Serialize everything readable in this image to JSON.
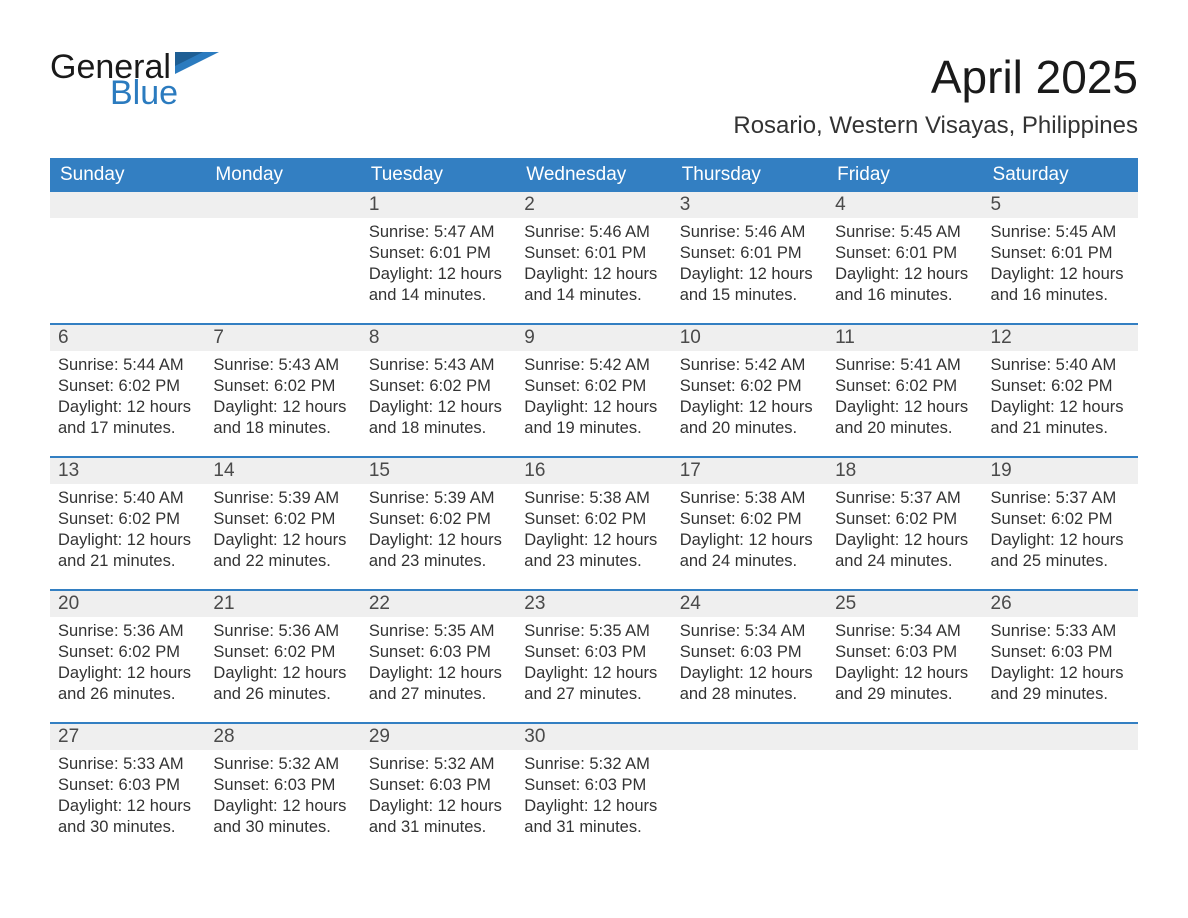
{
  "logo": {
    "word1": "General",
    "word2": "Blue",
    "flag_color": "#2b7bbf",
    "text_dark": "#1a1a1a"
  },
  "title": "April 2025",
  "location": "Rosario, Western Visayas, Philippines",
  "colors": {
    "header_bg": "#337fc2",
    "header_text": "#ffffff",
    "daynum_bg": "#efefef",
    "daynum_text": "#4a4a4a",
    "body_text": "#333333",
    "page_bg": "#ffffff",
    "week_border": "#337fc2"
  },
  "fonts": {
    "title_size_pt": 34,
    "location_size_pt": 18,
    "header_size_pt": 14,
    "daynum_size_pt": 14,
    "body_size_pt": 12
  },
  "day_headers": [
    "Sunday",
    "Monday",
    "Tuesday",
    "Wednesday",
    "Thursday",
    "Friday",
    "Saturday"
  ],
  "weeks": [
    [
      {
        "n": "",
        "sr": "",
        "ss": "",
        "dl": "",
        "dlm": ""
      },
      {
        "n": "",
        "sr": "",
        "ss": "",
        "dl": "",
        "dlm": ""
      },
      {
        "n": "1",
        "sr": "Sunrise: 5:47 AM",
        "ss": "Sunset: 6:01 PM",
        "dl": "Daylight: 12 hours",
        "dlm": "and 14 minutes."
      },
      {
        "n": "2",
        "sr": "Sunrise: 5:46 AM",
        "ss": "Sunset: 6:01 PM",
        "dl": "Daylight: 12 hours",
        "dlm": "and 14 minutes."
      },
      {
        "n": "3",
        "sr": "Sunrise: 5:46 AM",
        "ss": "Sunset: 6:01 PM",
        "dl": "Daylight: 12 hours",
        "dlm": "and 15 minutes."
      },
      {
        "n": "4",
        "sr": "Sunrise: 5:45 AM",
        "ss": "Sunset: 6:01 PM",
        "dl": "Daylight: 12 hours",
        "dlm": "and 16 minutes."
      },
      {
        "n": "5",
        "sr": "Sunrise: 5:45 AM",
        "ss": "Sunset: 6:01 PM",
        "dl": "Daylight: 12 hours",
        "dlm": "and 16 minutes."
      }
    ],
    [
      {
        "n": "6",
        "sr": "Sunrise: 5:44 AM",
        "ss": "Sunset: 6:02 PM",
        "dl": "Daylight: 12 hours",
        "dlm": "and 17 minutes."
      },
      {
        "n": "7",
        "sr": "Sunrise: 5:43 AM",
        "ss": "Sunset: 6:02 PM",
        "dl": "Daylight: 12 hours",
        "dlm": "and 18 minutes."
      },
      {
        "n": "8",
        "sr": "Sunrise: 5:43 AM",
        "ss": "Sunset: 6:02 PM",
        "dl": "Daylight: 12 hours",
        "dlm": "and 18 minutes."
      },
      {
        "n": "9",
        "sr": "Sunrise: 5:42 AM",
        "ss": "Sunset: 6:02 PM",
        "dl": "Daylight: 12 hours",
        "dlm": "and 19 minutes."
      },
      {
        "n": "10",
        "sr": "Sunrise: 5:42 AM",
        "ss": "Sunset: 6:02 PM",
        "dl": "Daylight: 12 hours",
        "dlm": "and 20 minutes."
      },
      {
        "n": "11",
        "sr": "Sunrise: 5:41 AM",
        "ss": "Sunset: 6:02 PM",
        "dl": "Daylight: 12 hours",
        "dlm": "and 20 minutes."
      },
      {
        "n": "12",
        "sr": "Sunrise: 5:40 AM",
        "ss": "Sunset: 6:02 PM",
        "dl": "Daylight: 12 hours",
        "dlm": "and 21 minutes."
      }
    ],
    [
      {
        "n": "13",
        "sr": "Sunrise: 5:40 AM",
        "ss": "Sunset: 6:02 PM",
        "dl": "Daylight: 12 hours",
        "dlm": "and 21 minutes."
      },
      {
        "n": "14",
        "sr": "Sunrise: 5:39 AM",
        "ss": "Sunset: 6:02 PM",
        "dl": "Daylight: 12 hours",
        "dlm": "and 22 minutes."
      },
      {
        "n": "15",
        "sr": "Sunrise: 5:39 AM",
        "ss": "Sunset: 6:02 PM",
        "dl": "Daylight: 12 hours",
        "dlm": "and 23 minutes."
      },
      {
        "n": "16",
        "sr": "Sunrise: 5:38 AM",
        "ss": "Sunset: 6:02 PM",
        "dl": "Daylight: 12 hours",
        "dlm": "and 23 minutes."
      },
      {
        "n": "17",
        "sr": "Sunrise: 5:38 AM",
        "ss": "Sunset: 6:02 PM",
        "dl": "Daylight: 12 hours",
        "dlm": "and 24 minutes."
      },
      {
        "n": "18",
        "sr": "Sunrise: 5:37 AM",
        "ss": "Sunset: 6:02 PM",
        "dl": "Daylight: 12 hours",
        "dlm": "and 24 minutes."
      },
      {
        "n": "19",
        "sr": "Sunrise: 5:37 AM",
        "ss": "Sunset: 6:02 PM",
        "dl": "Daylight: 12 hours",
        "dlm": "and 25 minutes."
      }
    ],
    [
      {
        "n": "20",
        "sr": "Sunrise: 5:36 AM",
        "ss": "Sunset: 6:02 PM",
        "dl": "Daylight: 12 hours",
        "dlm": "and 26 minutes."
      },
      {
        "n": "21",
        "sr": "Sunrise: 5:36 AM",
        "ss": "Sunset: 6:02 PM",
        "dl": "Daylight: 12 hours",
        "dlm": "and 26 minutes."
      },
      {
        "n": "22",
        "sr": "Sunrise: 5:35 AM",
        "ss": "Sunset: 6:03 PM",
        "dl": "Daylight: 12 hours",
        "dlm": "and 27 minutes."
      },
      {
        "n": "23",
        "sr": "Sunrise: 5:35 AM",
        "ss": "Sunset: 6:03 PM",
        "dl": "Daylight: 12 hours",
        "dlm": "and 27 minutes."
      },
      {
        "n": "24",
        "sr": "Sunrise: 5:34 AM",
        "ss": "Sunset: 6:03 PM",
        "dl": "Daylight: 12 hours",
        "dlm": "and 28 minutes."
      },
      {
        "n": "25",
        "sr": "Sunrise: 5:34 AM",
        "ss": "Sunset: 6:03 PM",
        "dl": "Daylight: 12 hours",
        "dlm": "and 29 minutes."
      },
      {
        "n": "26",
        "sr": "Sunrise: 5:33 AM",
        "ss": "Sunset: 6:03 PM",
        "dl": "Daylight: 12 hours",
        "dlm": "and 29 minutes."
      }
    ],
    [
      {
        "n": "27",
        "sr": "Sunrise: 5:33 AM",
        "ss": "Sunset: 6:03 PM",
        "dl": "Daylight: 12 hours",
        "dlm": "and 30 minutes."
      },
      {
        "n": "28",
        "sr": "Sunrise: 5:32 AM",
        "ss": "Sunset: 6:03 PM",
        "dl": "Daylight: 12 hours",
        "dlm": "and 30 minutes."
      },
      {
        "n": "29",
        "sr": "Sunrise: 5:32 AM",
        "ss": "Sunset: 6:03 PM",
        "dl": "Daylight: 12 hours",
        "dlm": "and 31 minutes."
      },
      {
        "n": "30",
        "sr": "Sunrise: 5:32 AM",
        "ss": "Sunset: 6:03 PM",
        "dl": "Daylight: 12 hours",
        "dlm": "and 31 minutes."
      },
      {
        "n": "",
        "sr": "",
        "ss": "",
        "dl": "",
        "dlm": ""
      },
      {
        "n": "",
        "sr": "",
        "ss": "",
        "dl": "",
        "dlm": ""
      },
      {
        "n": "",
        "sr": "",
        "ss": "",
        "dl": "",
        "dlm": ""
      }
    ]
  ]
}
